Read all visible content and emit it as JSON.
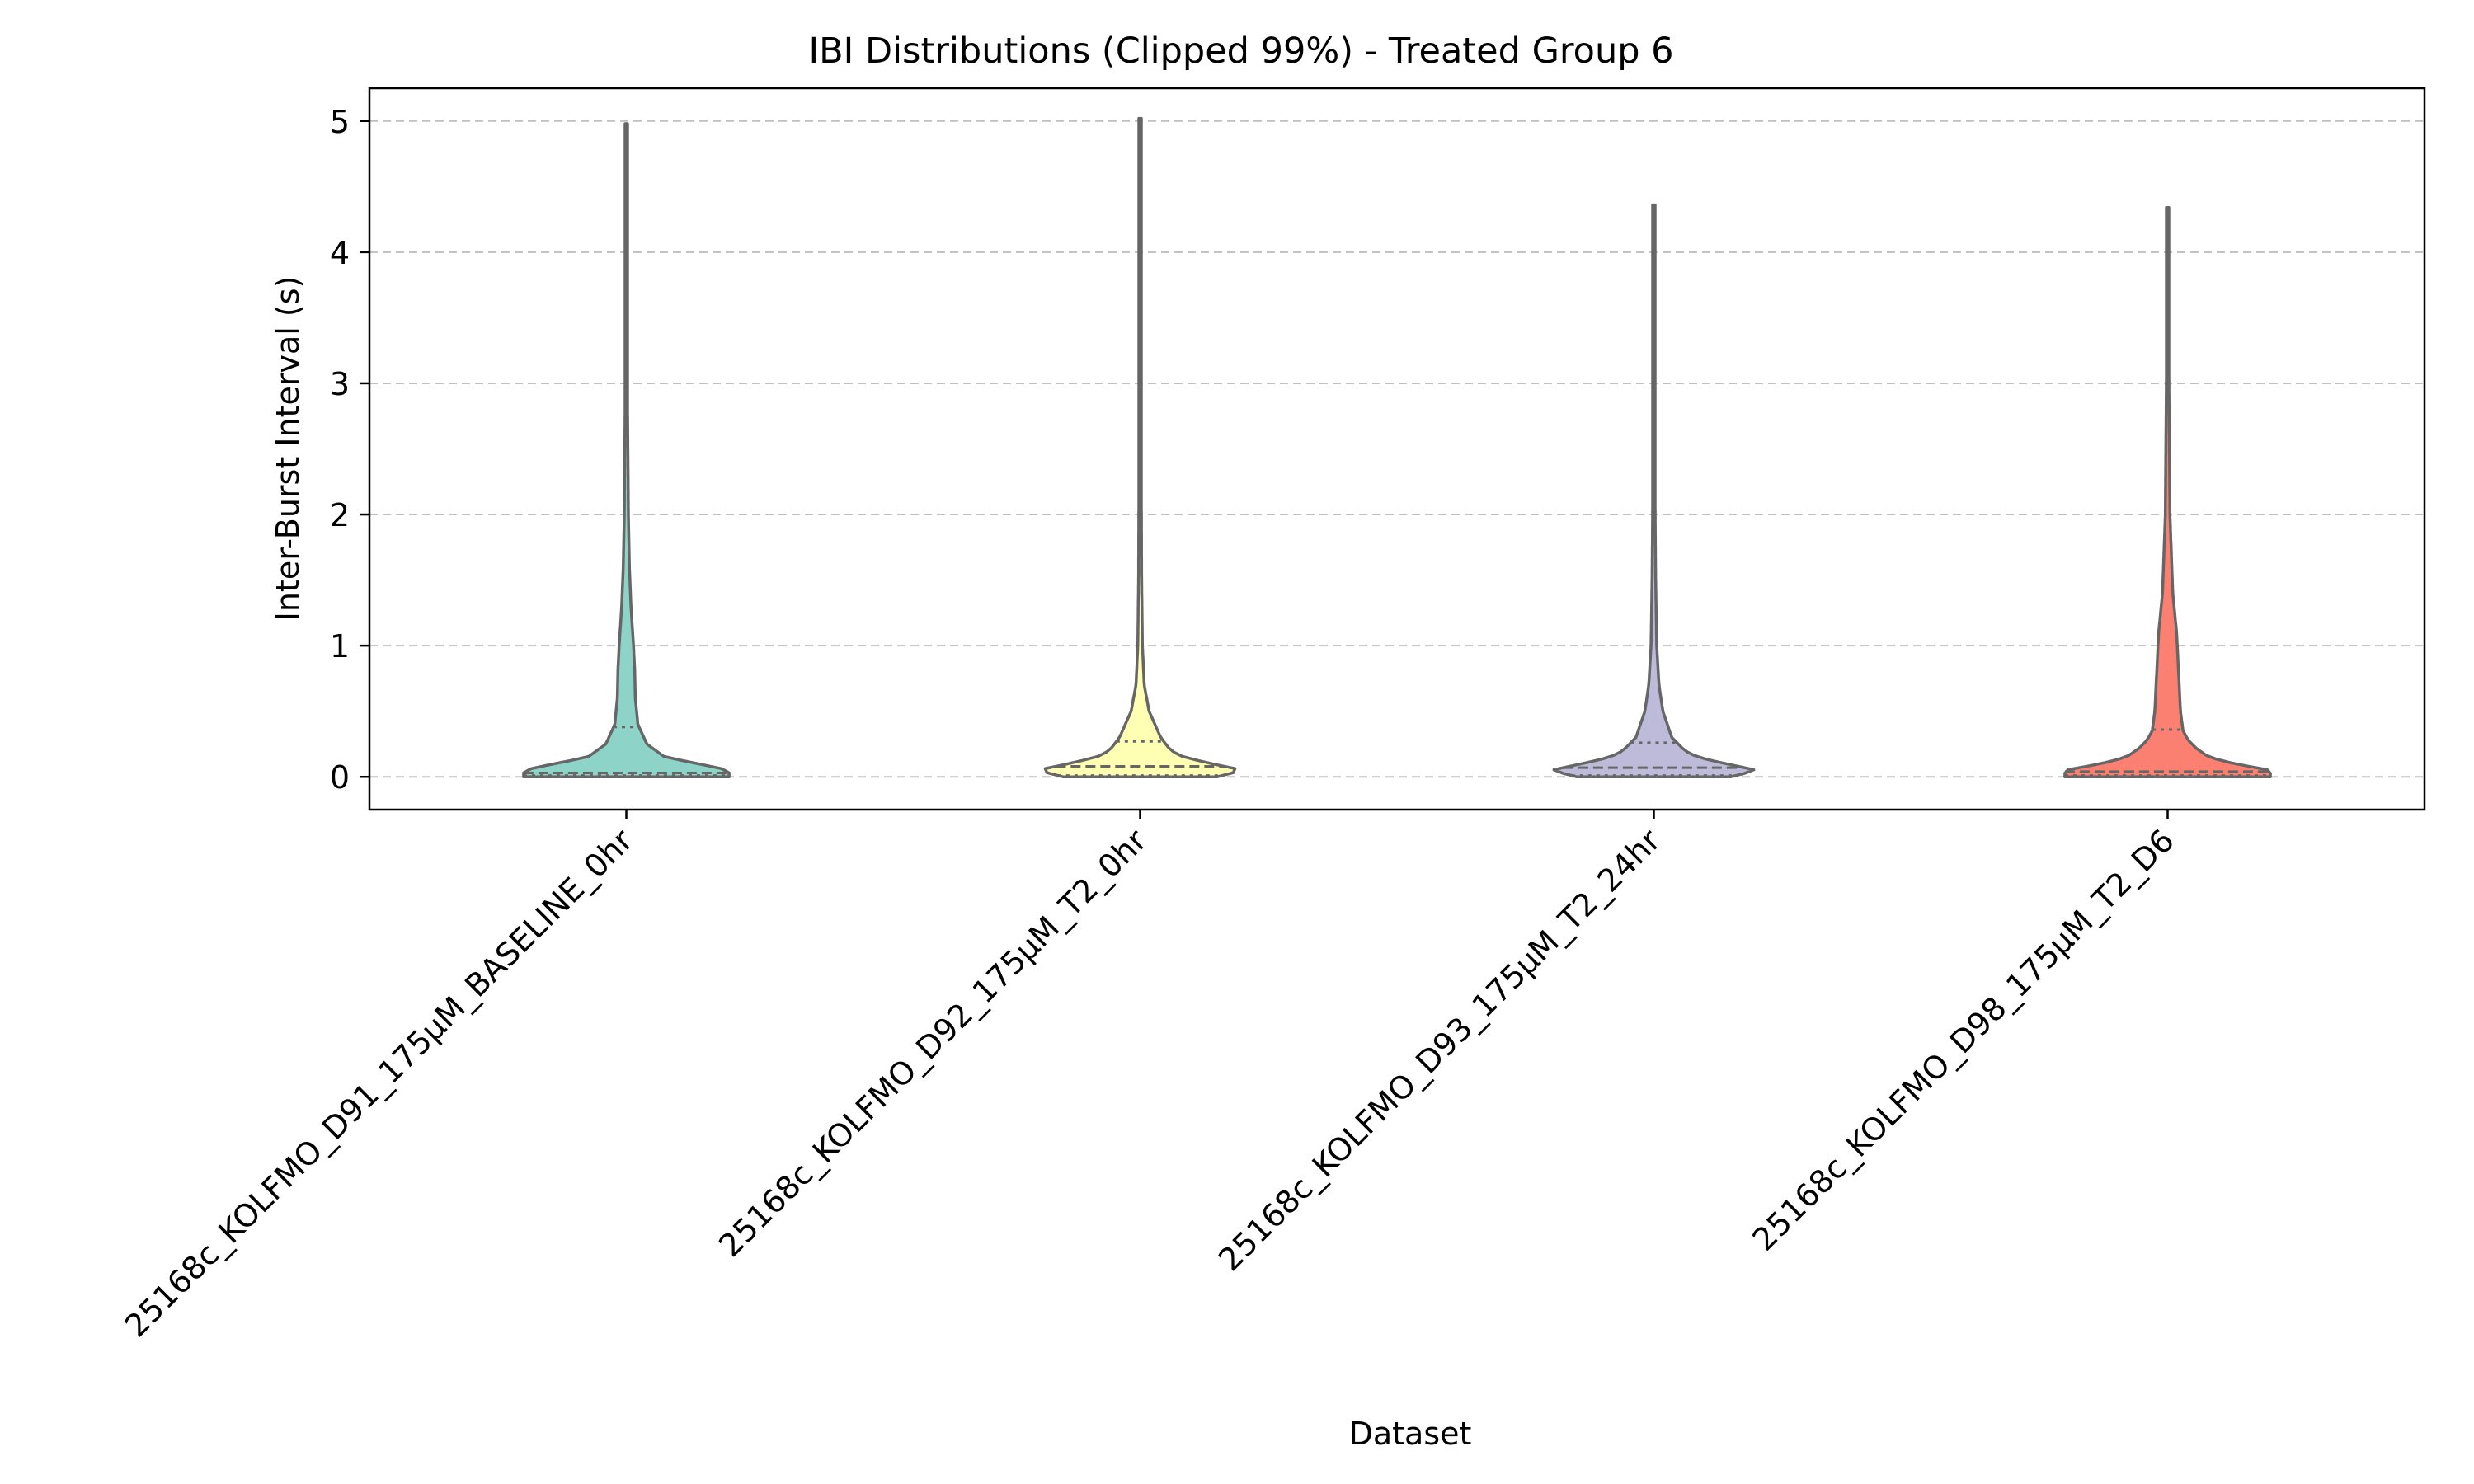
{
  "chart_data": {
    "type": "violin",
    "title": "IBI Distributions (Clipped 99%) - Treated Group 6",
    "xlabel": "Dataset",
    "ylabel": "Inter-Burst Interval (s)",
    "ylim": [
      -0.25,
      5.25
    ],
    "yticks": [
      0,
      1,
      2,
      3,
      4,
      5
    ],
    "grid": "horizontal dashed",
    "categories": [
      "25168c_KOLFMO_D91_175µM_BASELINE_0hr",
      "25168c_KOLFMO_D92_175µM_T2_0hr",
      "25168c_KOLFMO_D93_175µM_T2_24hr",
      "25168c_KOLFMO_D98_175µM_T2_D6"
    ],
    "colors": [
      "#8dd3c7",
      "#ffffb3",
      "#bebada",
      "#fb8072"
    ],
    "outline_color": "#666666",
    "violins": [
      {
        "min": 0.0,
        "max": 4.98,
        "q1": 0.01,
        "median": 0.03,
        "q3": 0.38,
        "profile": [
          [
            0.0,
            0.4
          ],
          [
            0.05,
            0.4
          ],
          [
            0.1,
            0.28
          ],
          [
            0.15,
            0.15
          ],
          [
            0.25,
            0.08
          ],
          [
            0.4,
            0.045
          ],
          [
            0.6,
            0.035
          ],
          [
            0.8,
            0.033
          ],
          [
            1.0,
            0.028
          ],
          [
            1.3,
            0.018
          ],
          [
            1.6,
            0.012
          ],
          [
            2.0,
            0.008
          ],
          [
            2.5,
            0.006
          ],
          [
            3.0,
            0.004
          ],
          [
            4.0,
            0.003
          ],
          [
            4.98,
            0.003
          ]
        ]
      },
      {
        "min": 0.0,
        "max": 5.02,
        "q1": 0.01,
        "median": 0.08,
        "q3": 0.27,
        "profile": [
          [
            0.0,
            0.3
          ],
          [
            0.05,
            0.4
          ],
          [
            0.1,
            0.28
          ],
          [
            0.15,
            0.17
          ],
          [
            0.2,
            0.12
          ],
          [
            0.3,
            0.08
          ],
          [
            0.5,
            0.035
          ],
          [
            0.7,
            0.016
          ],
          [
            1.0,
            0.009
          ],
          [
            1.5,
            0.006
          ],
          [
            2.0,
            0.005
          ],
          [
            3.0,
            0.004
          ],
          [
            5.02,
            0.003
          ]
        ]
      },
      {
        "min": 0.0,
        "max": 4.36,
        "q1": 0.01,
        "median": 0.07,
        "q3": 0.26,
        "profile": [
          [
            0.0,
            0.3
          ],
          [
            0.05,
            0.4
          ],
          [
            0.1,
            0.28
          ],
          [
            0.15,
            0.17
          ],
          [
            0.2,
            0.12
          ],
          [
            0.3,
            0.07
          ],
          [
            0.5,
            0.035
          ],
          [
            0.7,
            0.02
          ],
          [
            1.0,
            0.011
          ],
          [
            1.5,
            0.007
          ],
          [
            2.0,
            0.005
          ],
          [
            3.0,
            0.004
          ],
          [
            4.36,
            0.003
          ]
        ]
      },
      {
        "min": 0.0,
        "max": 4.34,
        "q1": 0.01,
        "median": 0.04,
        "q3": 0.36,
        "profile": [
          [
            0.0,
            0.4
          ],
          [
            0.05,
            0.4
          ],
          [
            0.1,
            0.26
          ],
          [
            0.15,
            0.16
          ],
          [
            0.22,
            0.11
          ],
          [
            0.28,
            0.08
          ],
          [
            0.35,
            0.06
          ],
          [
            0.5,
            0.05
          ],
          [
            0.7,
            0.045
          ],
          [
            0.9,
            0.04
          ],
          [
            1.1,
            0.035
          ],
          [
            1.4,
            0.02
          ],
          [
            2.0,
            0.009
          ],
          [
            3.0,
            0.005
          ],
          [
            4.34,
            0.003
          ]
        ]
      }
    ]
  }
}
